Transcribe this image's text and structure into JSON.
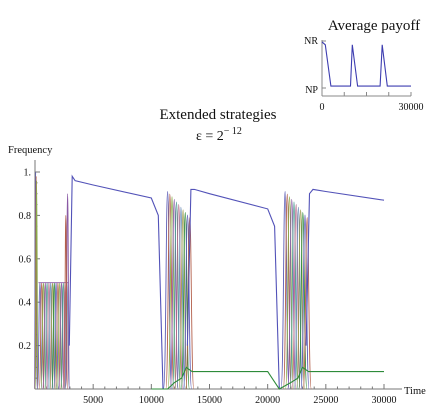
{
  "chart_data": [
    {
      "type": "line",
      "title": "Average payoff",
      "xlabel": "",
      "ylabel": "",
      "xlim": [
        0,
        30000
      ],
      "ylim": [
        0,
        1
      ],
      "x_ticks": [
        "0",
        "30000"
      ],
      "y_ticks": [
        "NR",
        "NP"
      ],
      "series": [
        {
          "x": [
            0,
            1100,
            3000,
            9600,
            10200,
            12000,
            19600,
            20300,
            22000,
            30000
          ],
          "y": [
            0.98,
            0.92,
            0.04,
            0.04,
            0.92,
            0.04,
            0.04,
            0.92,
            0.04,
            0.04
          ]
        }
      ]
    },
    {
      "type": "line",
      "title": "Extended strategies",
      "subtitle": "ε = 2",
      "subtitle_exponent": "− 12",
      "xlabel": "Time",
      "ylabel": "Frequency",
      "xlim": [
        0,
        30000
      ],
      "ylim": [
        0,
        1
      ],
      "x_ticks": [
        "5000",
        "10000",
        "15000",
        "20000",
        "25000",
        "30000"
      ],
      "y_ticks": [
        "0.2",
        "0.4",
        "0.6",
        "0.8",
        "1."
      ],
      "colors": [
        "#5b5bb5",
        "#b35f4a",
        "#8bab4a",
        "#8a5aa5",
        "#4a9a8f",
        "#b56a8a",
        "#6a8ab5",
        "#9a9a4a",
        "#2e8b3a"
      ],
      "series": [
        {
          "x": [
            2950,
            3200,
            3450,
            5000,
            10000,
            10600,
            11000
          ],
          "y": [
            0.2,
            0.98,
            0.96,
            0.94,
            0.88,
            0.8,
            0.0
          ]
        },
        {
          "x": [
            13100,
            13400,
            13700,
            15000,
            20000,
            20600,
            21000
          ],
          "y": [
            0.2,
            0.92,
            0.92,
            0.9,
            0.83,
            0.75,
            0.0
          ]
        },
        {
          "x": [
            23300,
            23600,
            23900,
            25000,
            30000
          ],
          "y": [
            0.2,
            0.9,
            0.92,
            0.91,
            0.87
          ]
        },
        {
          "x": [
            10000,
            11400,
            12000,
            12600,
            13000,
            13500,
            14000,
            20000,
            21000,
            22000,
            22600,
            23000,
            23500,
            24000,
            30000
          ],
          "y": [
            0.0,
            0.0,
            0.03,
            0.05,
            0.1,
            0.08,
            0.08,
            0.08,
            0.0,
            0.03,
            0.05,
            0.1,
            0.08,
            0.08,
            0.08
          ]
        }
      ]
    }
  ]
}
